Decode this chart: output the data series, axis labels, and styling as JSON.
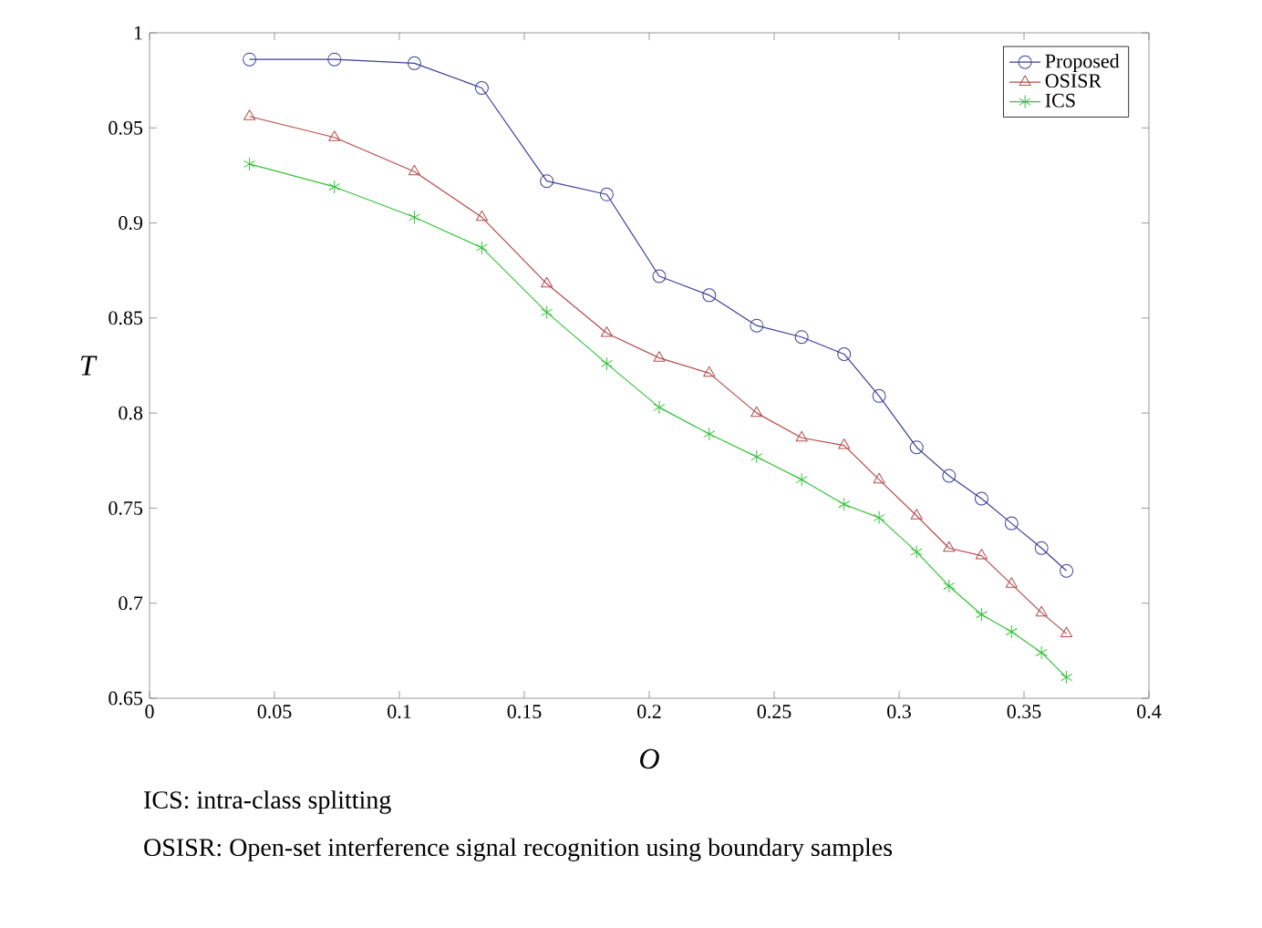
{
  "chart_data": {
    "type": "line",
    "xlabel": "O",
    "ylabel": "T",
    "x": [
      0.04,
      0.074,
      0.106,
      0.133,
      0.159,
      0.183,
      0.204,
      0.224,
      0.243,
      0.261,
      0.278,
      0.292,
      0.307,
      0.32,
      0.333,
      0.345,
      0.357,
      0.367
    ],
    "series": [
      {
        "name": "Proposed",
        "color": "#3a3f96",
        "marker": "circle",
        "values": [
          0.986,
          0.986,
          0.984,
          0.971,
          0.922,
          0.915,
          0.872,
          0.862,
          0.846,
          0.84,
          0.831,
          0.809,
          0.782,
          0.767,
          0.755,
          0.742,
          0.729,
          0.717
        ]
      },
      {
        "name": "OSISR",
        "color": "#b84a4a",
        "marker": "triangle",
        "values": [
          0.956,
          0.945,
          0.927,
          0.903,
          0.868,
          0.842,
          0.829,
          0.821,
          0.8,
          0.787,
          0.783,
          0.765,
          0.746,
          0.729,
          0.725,
          0.71,
          0.695,
          0.684
        ]
      },
      {
        "name": "ICS",
        "color": "#35c23a",
        "marker": "cross",
        "values": [
          0.931,
          0.919,
          0.903,
          0.887,
          0.853,
          0.826,
          0.803,
          0.789,
          0.777,
          0.765,
          0.752,
          0.745,
          0.727,
          0.709,
          0.694,
          0.685,
          0.674,
          0.661
        ]
      }
    ],
    "xlim": [
      0,
      0.4
    ],
    "xticks": [
      0,
      0.05,
      0.1,
      0.15,
      0.2,
      0.25,
      0.3,
      0.35,
      0.4
    ],
    "ylim": [
      0.65,
      1
    ],
    "yticks": [
      0.65,
      0.7,
      0.75,
      0.8,
      0.85,
      0.9,
      0.95,
      1
    ],
    "legend": "top right",
    "grid": false,
    "line_style": "solid",
    "annotations": [
      "ICS: intra-class splitting",
      "OSISR: Open-set interference signal recognition using boundary samples"
    ]
  }
}
